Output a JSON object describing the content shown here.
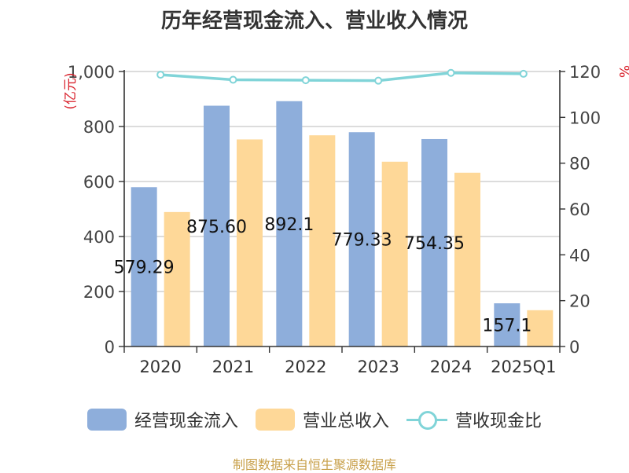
{
  "chart_data": {
    "type": "bar",
    "title": "历年经营现金流入、营业收入情况",
    "categories": [
      "2020",
      "2021",
      "2022",
      "2023",
      "2024",
      "2025Q1"
    ],
    "series": [
      {
        "name": "经营现金流入",
        "type": "bar",
        "axis": "left",
        "color": "#8eaedb",
        "values": [
          579.29,
          875.6,
          892.1,
          779.33,
          754.35,
          157.1
        ],
        "labels": [
          "579.29",
          "875.60",
          "892.1",
          "779.33",
          "754.35",
          "157.1"
        ]
      },
      {
        "name": "营业总收入",
        "type": "bar",
        "axis": "left",
        "color": "#fed898",
        "values": [
          489,
          753,
          768,
          672,
          632,
          132
        ]
      },
      {
        "name": "营收现金比",
        "type": "line",
        "axis": "right",
        "color": "#80d4d8",
        "values": [
          118.6,
          116.4,
          116.2,
          116.0,
          119.4,
          119.0
        ]
      }
    ],
    "y_left": {
      "label": "(亿元)",
      "min": 0,
      "max": 1000,
      "ticks": [
        0,
        200,
        400,
        600,
        800,
        1000
      ],
      "tick_labels": [
        "0",
        "200",
        "400",
        "600",
        "800",
        "1,000"
      ]
    },
    "y_right": {
      "label": "%",
      "min": 0,
      "max": 120,
      "ticks": [
        0,
        20,
        40,
        60,
        80,
        100,
        120
      ],
      "tick_labels": [
        "0",
        "20",
        "40",
        "60",
        "80",
        "100",
        "120"
      ]
    },
    "grid": true,
    "legend_position": "bottom"
  },
  "source": "制图数据来自恒生聚源数据库"
}
